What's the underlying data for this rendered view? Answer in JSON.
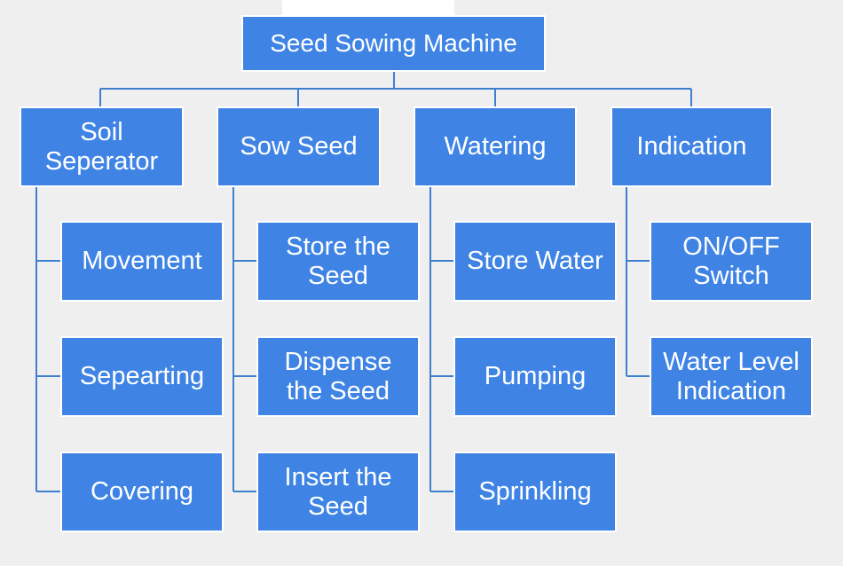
{
  "root": {
    "label": "Seed Sowing Machine"
  },
  "categories": [
    {
      "label": "Soil\nSeperator",
      "children": [
        "Movement",
        "Sepearting",
        "Covering"
      ]
    },
    {
      "label": "Sow Seed",
      "children": [
        "Store the\nSeed",
        "Dispense\nthe Seed",
        "Insert the\nSeed"
      ]
    },
    {
      "label": "Watering",
      "children": [
        "Store Water",
        "Pumping",
        "Sprinkling"
      ]
    },
    {
      "label": "Indication",
      "children": [
        "ON/OFF\nSwitch",
        "Water Level\nIndication"
      ]
    }
  ],
  "colors": {
    "box": "#3f84e5",
    "border": "#ffffff",
    "line": "#3f7fd0",
    "background": "#efefef"
  }
}
